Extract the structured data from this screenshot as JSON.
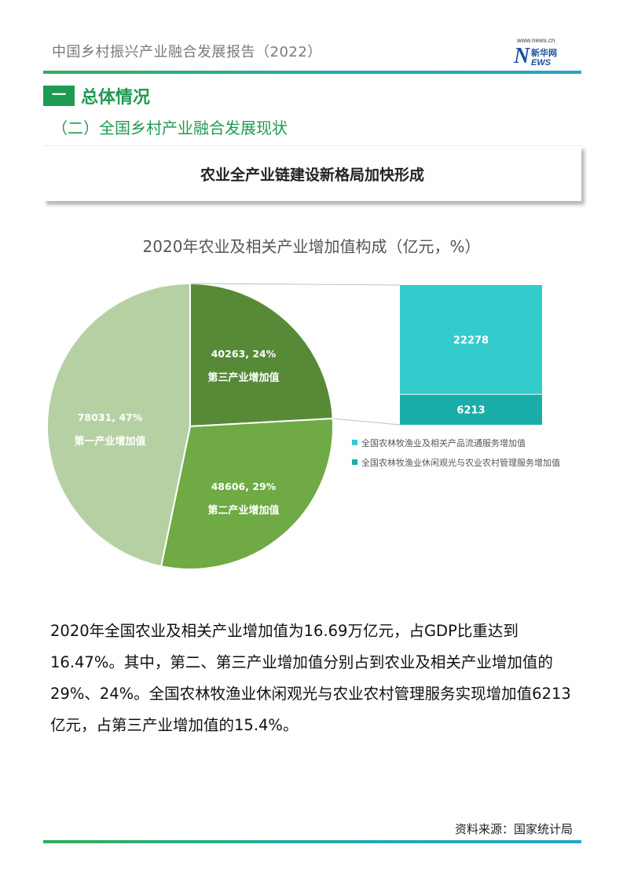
{
  "header": {
    "doc_title": "中国乡村振兴产业融合发展报告（2022）",
    "logo": {
      "url_text": "www.news.cn",
      "mark": "N",
      "cn_text": "新华网",
      "ews_text": "EWS"
    }
  },
  "section": {
    "tag": "一",
    "title": "总体情况"
  },
  "subsection": "（二）全国乡村产业融合发展现状",
  "banner": "农业全产业链建设新格局加快形成",
  "colors": {
    "primary_green": "#1f9a52",
    "first_industry": "#b5d1a4",
    "second_industry": "#6faa45",
    "third_industry": "#578a37",
    "circulation_service": "#33cbcc",
    "leisure_service": "#1aadaa"
  },
  "chart_data": {
    "type": "bar-of-pie",
    "title": "2020年农业及相关产业增加值构成（亿元，%）",
    "pie": [
      {
        "label": "第三产业增加值",
        "value": 40263,
        "percent": 24,
        "data_label": "40263, 24%"
      },
      {
        "label": "第二产业增加值",
        "value": 48606,
        "percent": 29,
        "data_label": "48606, 29%"
      },
      {
        "label": "第一产业增加值",
        "value": 78031,
        "percent": 47,
        "data_label": "78031, 47%"
      }
    ],
    "breakdown_of": "第三产业增加值",
    "stack": [
      {
        "name": "全国农林牧渔业及相关产品流通服务增加值",
        "value": 22278,
        "data_label": "22278"
      },
      {
        "name": "全国农林牧渔业休闲观光与农业农村管理服务增加值",
        "value": 6213,
        "data_label": "6213"
      }
    ],
    "legend_position": "right-below-stack"
  },
  "body_text": "2020年全国农业及相关产业增加值为16.69万亿元，占GDP比重达到16.47%。其中，第二、第三产业增加值分别占到农业及相关产业增加值的29%、24%。全国农林牧渔业休闲观光与农业农村管理服务实现增加值6213亿元，占第三产业增加值的15.4%。",
  "source": "资料来源：国家统计局"
}
